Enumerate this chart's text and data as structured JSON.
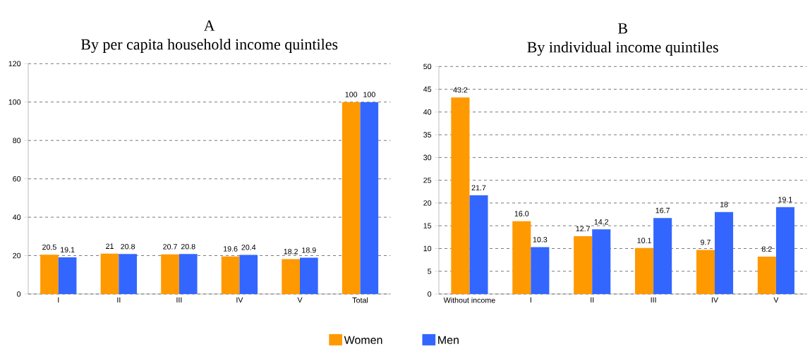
{
  "chart_data": [
    {
      "type": "bar",
      "title": "A",
      "subtitle": "By per capita household income quintiles",
      "categories": [
        "I",
        "II",
        "III",
        "IV",
        "V",
        "Total"
      ],
      "series": [
        {
          "color": "#ff9900",
          "values": [
            20.5,
            21,
            20.7,
            19.6,
            18.2,
            100
          ]
        },
        {
          "color": "#3366ff",
          "values": [
            19.1,
            20.8,
            20.8,
            20.4,
            18.9,
            100
          ]
        }
      ],
      "ylim": [
        0,
        120
      ],
      "yticks": [
        0,
        20,
        40,
        60,
        80,
        100,
        120
      ],
      "grid": "y",
      "data_labels": true
    },
    {
      "type": "bar",
      "title": "B",
      "subtitle": "By individual income quintiles",
      "categories": [
        "Without income",
        "I",
        "II",
        "III",
        "IV",
        "V"
      ],
      "series": [
        {
          "name": "Women",
          "color": "#ff9900",
          "values": [
            43.2,
            16.0,
            12.7,
            10.1,
            9.7,
            8.2
          ],
          "value_labels": [
            "43.2",
            "16.0",
            "12.7",
            "10.1",
            "9.7",
            "8.2"
          ]
        },
        {
          "name": "Men",
          "color": "#3366ff",
          "values": [
            21.7,
            10.3,
            14.2,
            16.7,
            18,
            19.1
          ],
          "value_labels": [
            "21.7",
            "10.3",
            "14.2",
            "16.7",
            "18",
            "19.1"
          ]
        }
      ],
      "ylim": [
        0,
        50
      ],
      "yticks": [
        0,
        5,
        10,
        15,
        20,
        25,
        30,
        35,
        40,
        45,
        50
      ],
      "grid": "y",
      "legend": "bottom"
    }
  ]
}
